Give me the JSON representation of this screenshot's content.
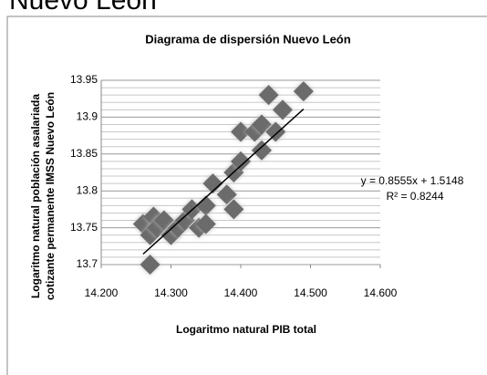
{
  "page_heading": "Nuevo León",
  "chart_data": {
    "type": "scatter",
    "title": "Diagrama de dispersión Nuevo León",
    "x_label": "Logaritmo natural PIB total",
    "y_label": [
      "Logaritmo natural población asalariada",
      "cotizante permanente IMSS Nuevo León"
    ],
    "x": [
      14.26,
      14.27,
      14.275,
      14.28,
      14.29,
      14.3,
      14.31,
      14.32,
      14.33,
      14.34,
      14.35,
      14.35,
      14.36,
      14.38,
      14.39,
      14.39,
      14.4,
      14.4,
      14.42,
      14.43,
      14.43,
      14.45,
      14.46,
      14.44,
      14.49,
      14.27
    ],
    "values": [
      13.755,
      13.74,
      13.765,
      13.75,
      13.76,
      13.74,
      13.75,
      13.76,
      13.775,
      13.75,
      13.78,
      13.755,
      13.81,
      13.795,
      13.775,
      13.825,
      13.84,
      13.88,
      13.88,
      13.855,
      13.89,
      13.88,
      13.91,
      13.93,
      13.935,
      13.7
    ],
    "color": "#6b6b6b",
    "trendline": {
      "slope": 0.8555,
      "intercept": 1.5148,
      "color": "#000000",
      "equation": "y = 0.8555x + 1.5148",
      "r2": "R² = 0.8244"
    },
    "xlim": [
      14.2,
      14.6
    ],
    "xticks": [
      {
        "value": 14.2,
        "label": "14.200"
      },
      {
        "value": 14.3,
        "label": "14.300"
      },
      {
        "value": 14.4,
        "label": "14.400"
      },
      {
        "value": 14.5,
        "label": "14.500"
      },
      {
        "value": 14.6,
        "label": "14.600"
      }
    ],
    "ylim": [
      13.7,
      13.95
    ],
    "yticks": [
      13.7,
      13.75,
      13.8,
      13.85,
      13.9,
      13.95
    ],
    "minor_yticks": [
      13.71,
      13.72,
      13.73,
      13.74,
      13.76,
      13.77,
      13.78,
      13.79,
      13.81,
      13.82,
      13.83,
      13.84,
      13.86,
      13.87,
      13.88,
      13.89,
      13.91,
      13.92,
      13.93,
      13.94
    ],
    "grid": true
  }
}
